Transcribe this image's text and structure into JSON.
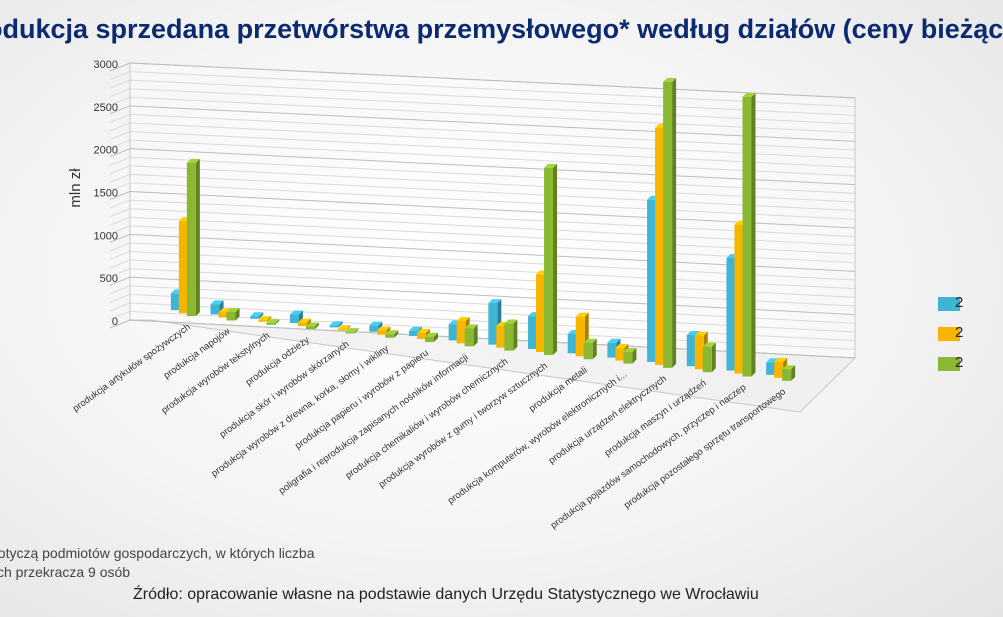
{
  "slide": {
    "title": "odukcja sprzedana przetwórstwa przemysłowego* według działów (ceny bieżąc",
    "footnote_line1": "dotyczą podmiotów gospodarczych, w których liczba",
    "footnote_line2": "ych przekracza 9 osób",
    "source": "Źródło: opracowanie własne na podstawie danych Urzędu Statystycznego we Wrocławiu"
  },
  "chart_data": {
    "type": "bar",
    "title": "odukcja sprzedana przetwórstwa przemysłowego* według działów (ceny bieżąc",
    "ylabel": "mln zł",
    "ylim": [
      0,
      3000
    ],
    "yticks": [
      0,
      500,
      1000,
      1500,
      2000,
      2500,
      3000
    ],
    "grid": true,
    "legend_placement": "right (cut off)",
    "categories": [
      "produkcja artykułów spożywczych",
      "produkcja napojów",
      "produkcja wyrobów tekstylnych",
      "produkcja odzieży",
      "produkcja skór i wyrobów skórzanych",
      "produkcja wyrobów z drewna, korka, słomy i wikliny",
      "produkcja papieru i wyrobów z papieru",
      "poligrafia i reprodukcja zapisanych nośników informacji",
      "produkcja chemikaliów i wyrobów chemicznych",
      "produkcja wyrobów z gumy i tworzyw sztucznych",
      "produkcja metali",
      "produkcja komputerów, wyrobów elektronicznych i...",
      "produkcja urządzeń elektrycznych",
      "produkcja maszyn i urządzeń",
      "produkcja pojazdów samochodowych, przyczep i naczep",
      "produkcja pozostałego sprzętu transportowego"
    ],
    "series": [
      {
        "name": "2",
        "color": "#3fb4d4",
        "values": [
          200,
          120,
          30,
          100,
          25,
          70,
          60,
          180,
          460,
          360,
          210,
          160,
          1730,
          330,
          1180,
          130
        ]
      },
      {
        "name": "2",
        "color": "#f8b500",
        "values": [
          1100,
          60,
          20,
          40,
          15,
          50,
          70,
          250,
          240,
          850,
          430,
          135,
          2530,
          355,
          1560,
          165
        ]
      },
      {
        "name": "2",
        "color": "#8ab833",
        "values": [
          1830,
          100,
          20,
          30,
          15,
          40,
          60,
          200,
          300,
          2050,
          180,
          125,
          3050,
          270,
          2930,
          120
        ]
      }
    ]
  }
}
